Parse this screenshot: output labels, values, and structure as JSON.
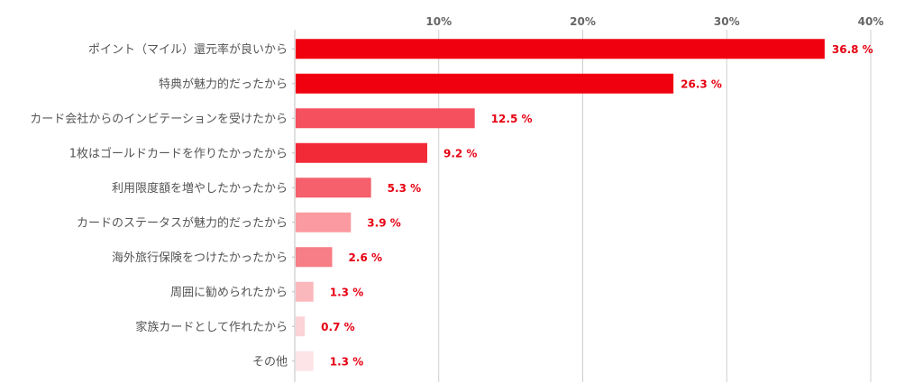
{
  "chart_data": {
    "type": "bar",
    "orientation": "horizontal",
    "title": "",
    "xlabel": "",
    "ylabel": "",
    "unit": "%",
    "xlim": [
      0,
      40
    ],
    "ticks": [
      {
        "value": 10,
        "label": "10%"
      },
      {
        "value": 20,
        "label": "20%"
      },
      {
        "value": 30,
        "label": "30%"
      },
      {
        "value": 40,
        "label": "40%"
      }
    ],
    "grid": true,
    "legend": "none",
    "categories": [
      "ポイント（マイル）還元率が良いから",
      "特典が魅力的だったから",
      "カード会社からのインビテーションを受けたから",
      "1枚はゴールドカードを作りたかったから",
      "利用限度額を増やしたかったから",
      "カードのステータスが魅力的だったから",
      "海外旅行保険をつけたかったから",
      "周囲に勧められたから",
      "家族カードとして作れたから",
      "その他"
    ],
    "values": [
      36.8,
      26.3,
      12.5,
      9.2,
      5.3,
      3.9,
      2.6,
      1.3,
      0.7,
      1.3
    ],
    "value_labels": [
      "36.8 %",
      "26.3 %",
      "12.5 %",
      "9.2 %",
      "5.3 %",
      "3.9 %",
      "2.6 %",
      "1.3 %",
      "0.7 %",
      "1.3 %"
    ],
    "bar_colors": [
      "#f0000f",
      "#f0000f",
      "#f5505e",
      "#f22a38",
      "#f5606c",
      "#fb9aa0",
      "#f77d86",
      "#fbb8bc",
      "#fcd3d6",
      "#fde4e6"
    ],
    "value_label_color": "#e60012"
  }
}
